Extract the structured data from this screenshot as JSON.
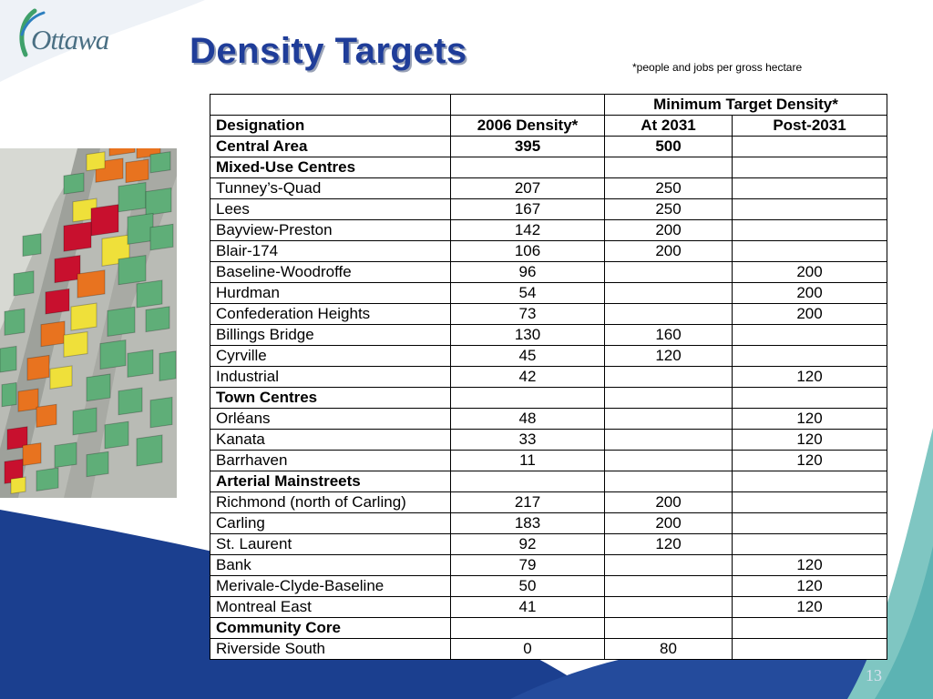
{
  "slide": {
    "logo_text": "Ottawa",
    "title": "Density Targets",
    "footnote": "*people and jobs per gross hectare",
    "slide_number": "13"
  },
  "colors": {
    "title": "#1f3d99",
    "wave_dark": "#1b3f8f",
    "wave_teal": "#7fc6c2",
    "building_green": "#5fae78",
    "building_red": "#c8102e",
    "building_orange": "#e8731f",
    "building_yellow": "#efe03a"
  },
  "table": {
    "header_row1": [
      "",
      "",
      "Minimum Target Density*"
    ],
    "header_row2": [
      "Designation",
      "2006 Density*",
      "At 2031",
      "Post-2031"
    ],
    "rows": [
      {
        "name": "Central Area",
        "d2006": "395",
        "at2031": "500",
        "post2031": "",
        "bold": true
      },
      {
        "name": "Mixed-Use Centres",
        "d2006": "",
        "at2031": "",
        "post2031": "",
        "bold": true
      },
      {
        "name": "Tunney’s-Quad",
        "d2006": "207",
        "at2031": "250",
        "post2031": ""
      },
      {
        "name": "Lees",
        "d2006": "167",
        "at2031": "250",
        "post2031": ""
      },
      {
        "name": "Bayview-Preston",
        "d2006": "142",
        "at2031": "200",
        "post2031": ""
      },
      {
        "name": "Blair-174",
        "d2006": "106",
        "at2031": "200",
        "post2031": ""
      },
      {
        "name": "Baseline-Woodroffe",
        "d2006": "96",
        "at2031": "",
        "post2031": "200"
      },
      {
        "name": "Hurdman",
        "d2006": "54",
        "at2031": "",
        "post2031": "200"
      },
      {
        "name": "Confederation Heights",
        "d2006": "73",
        "at2031": "",
        "post2031": "200"
      },
      {
        "name": "Billings Bridge",
        "d2006": "130",
        "at2031": "160",
        "post2031": ""
      },
      {
        "name": "Cyrville",
        "d2006": "45",
        "at2031": "120",
        "post2031": ""
      },
      {
        "name": "Industrial",
        "d2006": "42",
        "at2031": "",
        "post2031": "120"
      },
      {
        "name": "Town Centres",
        "d2006": "",
        "at2031": "",
        "post2031": "",
        "bold": true
      },
      {
        "name": "Orléans",
        "d2006": "48",
        "at2031": "",
        "post2031": "120"
      },
      {
        "name": "Kanata",
        "d2006": "33",
        "at2031": "",
        "post2031": "120"
      },
      {
        "name": "Barrhaven",
        "d2006": "11",
        "at2031": "",
        "post2031": "120"
      },
      {
        "name": "Arterial Mainstreets",
        "d2006": "",
        "at2031": "",
        "post2031": "",
        "bold": true
      },
      {
        "name": "Richmond (north of Carling)",
        "d2006": "217",
        "at2031": "200",
        "post2031": ""
      },
      {
        "name": "Carling",
        "d2006": "183",
        "at2031": "200",
        "post2031": ""
      },
      {
        "name": "St. Laurent",
        "d2006": "92",
        "at2031": "120",
        "post2031": ""
      },
      {
        "name": "Bank",
        "d2006": "79",
        "at2031": "",
        "post2031": "120"
      },
      {
        "name": "Merivale-Clyde-Baseline",
        "d2006": "50",
        "at2031": "",
        "post2031": "120"
      },
      {
        "name": "Montreal East",
        "d2006": "41",
        "at2031": "",
        "post2031": "120"
      },
      {
        "name": "Community Core",
        "d2006": "",
        "at2031": "",
        "post2031": "",
        "bold": true
      },
      {
        "name": "Riverside South",
        "d2006": "0",
        "at2031": "80",
        "post2031": ""
      }
    ]
  }
}
